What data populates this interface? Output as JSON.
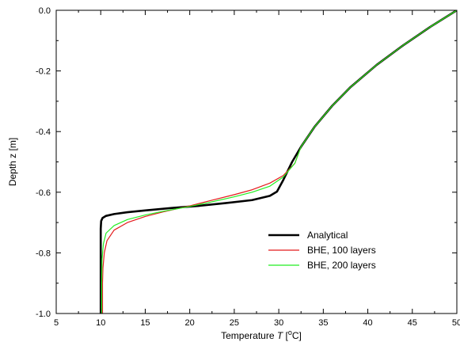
{
  "chart_data": {
    "type": "line",
    "xlabel": {
      "prefix": "Temperature ",
      "italic": "T",
      "mid": " [",
      "sup": "o",
      "suffix": "C]"
    },
    "ylabel": "Depth z [m]",
    "xlim": [
      5,
      50
    ],
    "ylim": [
      -1.0,
      0.0
    ],
    "x_ticks": [
      5,
      10,
      15,
      20,
      25,
      30,
      35,
      40,
      45,
      50
    ],
    "x_tick_labels": [
      "5",
      "10",
      "15",
      "20",
      "25",
      "30",
      "35",
      "40",
      "45",
      "50"
    ],
    "y_ticks": [
      0.0,
      -0.2,
      -0.4,
      -0.6,
      -0.8,
      -1.0
    ],
    "y_tick_labels": [
      "0.0",
      "-0.2",
      "-0.4",
      "-0.6",
      "-0.8",
      "-1.0"
    ],
    "grid": false,
    "legend_position": "lower-right",
    "series": [
      {
        "name": "Analytical",
        "color": "#000000",
        "width": 2.6,
        "points": [
          [
            50,
            0.0
          ],
          [
            47,
            -0.055
          ],
          [
            44,
            -0.115
          ],
          [
            41,
            -0.18
          ],
          [
            38,
            -0.255
          ],
          [
            36,
            -0.315
          ],
          [
            34,
            -0.385
          ],
          [
            32.5,
            -0.45
          ],
          [
            31.5,
            -0.5
          ],
          [
            30.5,
            -0.56
          ],
          [
            29.8,
            -0.598
          ],
          [
            29,
            -0.612
          ],
          [
            27,
            -0.626
          ],
          [
            24,
            -0.636
          ],
          [
            21,
            -0.645
          ],
          [
            18,
            -0.652
          ],
          [
            15,
            -0.66
          ],
          [
            13,
            -0.666
          ],
          [
            11.5,
            -0.672
          ],
          [
            10.6,
            -0.678
          ],
          [
            10.2,
            -0.685
          ],
          [
            10.05,
            -0.695
          ],
          [
            10,
            -0.72
          ],
          [
            10,
            -0.85
          ],
          [
            10,
            -1.0
          ]
        ]
      },
      {
        "name": "BHE, 100 layers",
        "color": "#e41a1c",
        "width": 1.2,
        "points": [
          [
            50,
            0.0
          ],
          [
            47,
            -0.055
          ],
          [
            44,
            -0.115
          ],
          [
            41,
            -0.18
          ],
          [
            38,
            -0.255
          ],
          [
            36,
            -0.315
          ],
          [
            34,
            -0.385
          ],
          [
            32.5,
            -0.45
          ],
          [
            31.8,
            -0.505
          ],
          [
            30.5,
            -0.545
          ],
          [
            29,
            -0.57
          ],
          [
            27,
            -0.592
          ],
          [
            25,
            -0.608
          ],
          [
            22,
            -0.63
          ],
          [
            20,
            -0.645
          ],
          [
            17,
            -0.665
          ],
          [
            15,
            -0.68
          ],
          [
            13,
            -0.7
          ],
          [
            11.5,
            -0.725
          ],
          [
            10.7,
            -0.76
          ],
          [
            10.4,
            -0.8
          ],
          [
            10.25,
            -0.85
          ],
          [
            10.2,
            -0.9
          ],
          [
            10.2,
            -1.0
          ]
        ]
      },
      {
        "name": "BHE, 200 layers",
        "color": "#22ee22",
        "width": 1.2,
        "points": [
          [
            50,
            0.0
          ],
          [
            47,
            -0.055
          ],
          [
            44,
            -0.115
          ],
          [
            41,
            -0.18
          ],
          [
            38,
            -0.255
          ],
          [
            36,
            -0.315
          ],
          [
            34,
            -0.385
          ],
          [
            32.5,
            -0.45
          ],
          [
            31.8,
            -0.505
          ],
          [
            30.5,
            -0.55
          ],
          [
            29,
            -0.58
          ],
          [
            27,
            -0.6
          ],
          [
            25,
            -0.615
          ],
          [
            22,
            -0.635
          ],
          [
            20,
            -0.647
          ],
          [
            17,
            -0.663
          ],
          [
            15,
            -0.675
          ],
          [
            13,
            -0.69
          ],
          [
            11.5,
            -0.71
          ],
          [
            10.6,
            -0.735
          ],
          [
            10.3,
            -0.77
          ],
          [
            10.15,
            -0.82
          ],
          [
            10.1,
            -0.9
          ],
          [
            10.1,
            -1.0
          ]
        ]
      }
    ]
  }
}
